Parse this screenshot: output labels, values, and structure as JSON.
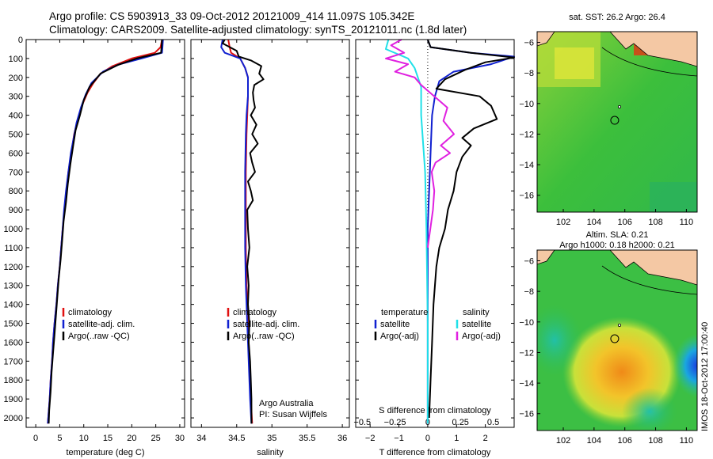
{
  "header": {
    "line1": "Argo profile: CS 5903913_33 09-Oct-2012 20121009_414 11.097S 105.342E",
    "line2": "Climatology: CARS2009. Satellite-adjusted climatology: synTS_20121011.nc (1.8d later)"
  },
  "colors": {
    "red": "#e01010",
    "blue": "#1020d0",
    "black": "#000000",
    "cyan": "#20e0e8",
    "magenta": "#e020e0"
  },
  "chart_data": [
    {
      "type": "line",
      "id": "temperature",
      "xlabel": "temperature (deg C)",
      "xlim": [
        -2,
        31
      ],
      "xticks": [
        0,
        5,
        10,
        15,
        20,
        25,
        30
      ],
      "ylim": [
        2050,
        0
      ],
      "yticks": [
        0,
        100,
        200,
        300,
        400,
        500,
        600,
        700,
        800,
        900,
        1000,
        1100,
        1200,
        1300,
        1400,
        1500,
        1600,
        1700,
        1800,
        1900,
        2000
      ],
      "legend": [
        "climatology",
        "satellite-adj. clim.",
        "Argo(..raw -QC)"
      ],
      "series": [
        {
          "name": "climatology",
          "color": "red",
          "points": [
            [
              26.3,
              0
            ],
            [
              26.0,
              40
            ],
            [
              24.8,
              70
            ],
            [
              20.0,
              100
            ],
            [
              16.0,
              140
            ],
            [
              13.5,
              180
            ],
            [
              12.0,
              230
            ],
            [
              10.8,
              280
            ],
            [
              9.6,
              350
            ],
            [
              8.8,
              420
            ],
            [
              8.0,
              500
            ],
            [
              7.4,
              600
            ],
            [
              6.8,
              700
            ],
            [
              6.4,
              800
            ],
            [
              6.0,
              900
            ],
            [
              5.6,
              1000
            ],
            [
              5.3,
              1100
            ],
            [
              5.0,
              1200
            ],
            [
              4.6,
              1300
            ],
            [
              4.3,
              1400
            ],
            [
              3.9,
              1500
            ],
            [
              3.6,
              1600
            ],
            [
              3.4,
              1700
            ],
            [
              3.1,
              1800
            ],
            [
              2.9,
              1900
            ],
            [
              2.6,
              2000
            ],
            [
              2.5,
              2030
            ]
          ]
        },
        {
          "name": "satellite-adj. clim.",
          "color": "blue",
          "points": [
            [
              26.5,
              0
            ],
            [
              26.4,
              40
            ],
            [
              26.3,
              70
            ],
            [
              22.0,
              100
            ],
            [
              17.5,
              130
            ],
            [
              14.0,
              170
            ],
            [
              11.6,
              230
            ],
            [
              10.4,
              290
            ],
            [
              9.4,
              360
            ],
            [
              8.5,
              440
            ],
            [
              7.9,
              520
            ],
            [
              7.3,
              600
            ],
            [
              6.8,
              700
            ],
            [
              6.3,
              800
            ],
            [
              5.9,
              900
            ],
            [
              5.6,
              1000
            ],
            [
              5.3,
              1100
            ],
            [
              5.0,
              1200
            ],
            [
              4.6,
              1300
            ],
            [
              4.3,
              1400
            ],
            [
              3.9,
              1500
            ],
            [
              3.6,
              1600
            ],
            [
              3.4,
              1700
            ],
            [
              3.1,
              1800
            ],
            [
              2.9,
              1900
            ],
            [
              2.6,
              2000
            ],
            [
              2.5,
              2030
            ]
          ]
        },
        {
          "name": "Argo(..raw -QC)",
          "color": "black",
          "points": [
            [
              26.3,
              0
            ],
            [
              26.2,
              40
            ],
            [
              26.1,
              70
            ],
            [
              21.0,
              100
            ],
            [
              17.0,
              135
            ],
            [
              13.5,
              180
            ],
            [
              11.2,
              250
            ],
            [
              10.0,
              320
            ],
            [
              9.2,
              400
            ],
            [
              8.3,
              480
            ],
            [
              7.8,
              560
            ],
            [
              7.2,
              660
            ],
            [
              6.7,
              760
            ],
            [
              6.3,
              860
            ],
            [
              5.8,
              960
            ],
            [
              5.5,
              1060
            ],
            [
              5.2,
              1160
            ],
            [
              4.8,
              1260
            ],
            [
              4.5,
              1360
            ],
            [
              4.2,
              1460
            ],
            [
              3.9,
              1560
            ],
            [
              3.6,
              1660
            ],
            [
              3.3,
              1760
            ],
            [
              3.1,
              1860
            ],
            [
              2.8,
              1960
            ],
            [
              2.7,
              2030
            ]
          ]
        }
      ]
    },
    {
      "type": "line",
      "id": "salinity",
      "xlabel": "salinity",
      "xlim": [
        33.85,
        36.1
      ],
      "xticks": [
        34,
        34.5,
        35,
        35.5,
        36
      ],
      "ylim": [
        2050,
        0
      ],
      "legend": [
        "climatology",
        "satellite-adj. clim.",
        "Argo(..raw -QC)"
      ],
      "annotation": [
        "Argo Australia",
        "PI: Susan Wijffels"
      ],
      "series": [
        {
          "name": "climatology",
          "color": "red",
          "points": [
            [
              34.38,
              0
            ],
            [
              34.4,
              40
            ],
            [
              34.42,
              70
            ],
            [
              34.55,
              100
            ],
            [
              34.62,
              150
            ],
            [
              34.66,
              200
            ],
            [
              34.66,
              300
            ],
            [
              34.65,
              400
            ],
            [
              34.64,
              500
            ],
            [
              34.63,
              700
            ],
            [
              34.63,
              900
            ],
            [
              34.63,
              1100
            ],
            [
              34.64,
              1300
            ],
            [
              34.66,
              1500
            ],
            [
              34.68,
              1700
            ],
            [
              34.7,
              1900
            ],
            [
              34.72,
              2030
            ]
          ]
        },
        {
          "name": "satellite-adj. clim.",
          "color": "blue",
          "points": [
            [
              34.3,
              0
            ],
            [
              34.28,
              40
            ],
            [
              34.33,
              70
            ],
            [
              34.55,
              100
            ],
            [
              34.62,
              150
            ],
            [
              34.66,
              200
            ],
            [
              34.66,
              300
            ],
            [
              34.64,
              400
            ],
            [
              34.63,
              500
            ],
            [
              34.62,
              700
            ],
            [
              34.62,
              900
            ],
            [
              34.62,
              1100
            ],
            [
              34.63,
              1300
            ],
            [
              34.65,
              1500
            ],
            [
              34.67,
              1700
            ],
            [
              34.69,
              1900
            ],
            [
              34.71,
              2030
            ]
          ]
        },
        {
          "name": "Argo(..raw -QC)",
          "color": "black",
          "points": [
            [
              34.33,
              0
            ],
            [
              34.3,
              20
            ],
            [
              34.5,
              60
            ],
            [
              34.53,
              90
            ],
            [
              34.7,
              110
            ],
            [
              34.85,
              140
            ],
            [
              34.82,
              180
            ],
            [
              34.88,
              210
            ],
            [
              34.75,
              240
            ],
            [
              34.73,
              280
            ],
            [
              34.74,
              320
            ],
            [
              34.76,
              360
            ],
            [
              34.7,
              400
            ],
            [
              34.78,
              450
            ],
            [
              34.72,
              500
            ],
            [
              34.8,
              550
            ],
            [
              34.69,
              600
            ],
            [
              34.72,
              650
            ],
            [
              34.76,
              700
            ],
            [
              34.66,
              750
            ],
            [
              34.7,
              800
            ],
            [
              34.73,
              850
            ],
            [
              34.65,
              900
            ],
            [
              34.66,
              1000
            ],
            [
              34.68,
              1100
            ],
            [
              34.65,
              1200
            ],
            [
              34.67,
              1300
            ],
            [
              34.66,
              1400
            ],
            [
              34.68,
              1500
            ],
            [
              34.67,
              1600
            ],
            [
              34.69,
              1700
            ],
            [
              34.7,
              1800
            ],
            [
              34.71,
              1900
            ],
            [
              34.71,
              2030
            ]
          ]
        }
      ]
    },
    {
      "type": "line",
      "id": "difference",
      "xlabel": "T difference from climatology",
      "xlabel_top": "S difference from climatology",
      "xlim": [
        -2.5,
        3.0
      ],
      "xticks": [
        -2,
        -1,
        0,
        1,
        2
      ],
      "xticks_S": [
        -0.5,
        -0.25,
        0,
        0.25,
        0.5
      ],
      "ylim": [
        2050,
        0
      ],
      "legend_headers": [
        "temperature",
        "salinity"
      ],
      "legend": [
        "satellite",
        "Argo(-adj)",
        "satellite",
        "Argo(-adj)"
      ],
      "series": [
        {
          "name": "satellite",
          "group": "temperature",
          "color": "blue",
          "points": [
            [
              0,
              0
            ],
            [
              0.1,
              40
            ],
            [
              1.5,
              70
            ],
            [
              3.0,
              90
            ],
            [
              2.2,
              130
            ],
            [
              0.9,
              170
            ],
            [
              0.4,
              220
            ],
            [
              0.25,
              300
            ],
            [
              0.15,
              400
            ],
            [
              0.1,
              600
            ],
            [
              0.05,
              800
            ],
            [
              0,
              1000
            ],
            [
              0,
              2030
            ]
          ]
        },
        {
          "name": "Argo(-adj)",
          "group": "temperature",
          "color": "black",
          "points": [
            [
              0,
              0
            ],
            [
              0.1,
              40
            ],
            [
              1.5,
              70
            ],
            [
              3.0,
              95
            ],
            [
              2.0,
              120
            ],
            [
              1.3,
              160
            ],
            [
              0.6,
              210
            ],
            [
              0.3,
              260
            ],
            [
              1.8,
              300
            ],
            [
              2.2,
              350
            ],
            [
              2.4,
              420
            ],
            [
              1.6,
              470
            ],
            [
              1.2,
              520
            ],
            [
              1.5,
              560
            ],
            [
              1.2,
              620
            ],
            [
              1.0,
              700
            ],
            [
              0.9,
              800
            ],
            [
              0.7,
              900
            ],
            [
              0.6,
              1000
            ],
            [
              0.4,
              1100
            ],
            [
              0.3,
              1200
            ],
            [
              0.2,
              1400
            ],
            [
              0.15,
              1600
            ],
            [
              0.1,
              1800
            ],
            [
              0.05,
              2000
            ]
          ]
        },
        {
          "name": "satellite",
          "group": "salinity",
          "color": "cyan",
          "points": [
            [
              -0.3,
              0
            ],
            [
              -0.32,
              50
            ],
            [
              -0.15,
              100
            ],
            [
              -0.1,
              150
            ],
            [
              -0.05,
              250
            ],
            [
              -0.05,
              400
            ],
            [
              -0.02,
              700
            ],
            [
              -0.01,
              1000
            ],
            [
              0,
              1500
            ],
            [
              0,
              2030
            ]
          ]
        },
        {
          "name": "Argo(-adj)",
          "group": "salinity",
          "color": "magenta",
          "points": [
            [
              -0.2,
              0
            ],
            [
              -0.28,
              30
            ],
            [
              -0.18,
              70
            ],
            [
              -0.32,
              100
            ],
            [
              -0.15,
              130
            ],
            [
              -0.25,
              170
            ],
            [
              -0.1,
              200
            ],
            [
              -0.05,
              240
            ],
            [
              0.05,
              300
            ],
            [
              0.15,
              360
            ],
            [
              0.12,
              430
            ],
            [
              0.2,
              500
            ],
            [
              0.1,
              560
            ],
            [
              0.17,
              600
            ],
            [
              0.06,
              650
            ],
            [
              0.03,
              700
            ],
            [
              0.05,
              800
            ],
            [
              0.04,
              900
            ],
            [
              0.02,
              1000
            ],
            [
              0,
              1100
            ]
          ]
        }
      ]
    },
    {
      "type": "heatmap",
      "id": "sst-map",
      "title": "sat. SST: 26.2 Argo: 26.4",
      "xticks": [
        102,
        104,
        106,
        108,
        110
      ],
      "yticks": [
        -6,
        -8,
        -10,
        -12,
        -14,
        -16
      ],
      "xlim": [
        100.3,
        110.7
      ],
      "ylim": [
        -17.1,
        -5.3
      ],
      "float_position": [
        105.342,
        -11.097
      ]
    },
    {
      "type": "heatmap",
      "id": "sla-map",
      "title": [
        "Altim. SLA: 0.21",
        "Argo h1000: 0.18 h2000: 0.21"
      ],
      "xticks": [
        102,
        104,
        106,
        108,
        110
      ],
      "yticks": [
        -6,
        -8,
        -10,
        -12,
        -14,
        -16
      ],
      "xlim": [
        100.3,
        110.7
      ],
      "ylim": [
        -17.1,
        -5.3
      ],
      "float_position": [
        105.342,
        -11.097
      ]
    }
  ],
  "footer": {
    "stamp": "IMOS 18-Oct-2012 17:00:40"
  }
}
